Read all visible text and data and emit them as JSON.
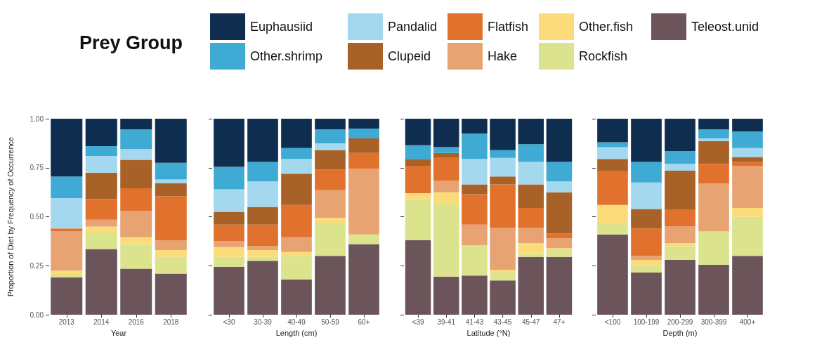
{
  "chart_data": [
    {
      "type": "bar",
      "stacked": true,
      "legend": "top",
      "legend_title": "Prey Group",
      "ylabel": "Proportion of Diet by Frequency of Occurrence",
      "xlabel": "Year",
      "categories": [
        "2013",
        "2014",
        "2016",
        "2018"
      ],
      "ylim": [
        0,
        1
      ],
      "yticks": [
        {
          "value": 0,
          "label": "0.00"
        },
        {
          "value": 0.25,
          "label": "0.25"
        },
        {
          "value": 0.5,
          "label": "0.50"
        },
        {
          "value": 0.75,
          "label": "0.75"
        },
        {
          "value": 1,
          "label": "1.00"
        }
      ],
      "series": [
        {
          "name": "Teleost.unid",
          "color": "#6c555a",
          "values": [
            0.19,
            0.335,
            0.235,
            0.21
          ]
        },
        {
          "name": "Rockfish",
          "color": "#dbe48c",
          "values": [
            0.015,
            0.085,
            0.125,
            0.085
          ]
        },
        {
          "name": "Other.fish",
          "color": "#fcdc7a",
          "values": [
            0.02,
            0.03,
            0.035,
            0.035
          ]
        },
        {
          "name": "Hake",
          "color": "#e8a373",
          "values": [
            0.2,
            0.035,
            0.135,
            0.05
          ]
        },
        {
          "name": "Flatfish",
          "color": "#e0722d",
          "values": [
            0.015,
            0.105,
            0.115,
            0.225
          ]
        },
        {
          "name": "Clupeid",
          "color": "#a86126",
          "values": [
            0,
            0.135,
            0.145,
            0.065
          ]
        },
        {
          "name": "Pandalid",
          "color": "#a4d8ee",
          "values": [
            0.155,
            0.085,
            0.055,
            0.02
          ]
        },
        {
          "name": "Other.shrimp",
          "color": "#3faad4",
          "values": [
            0.11,
            0.05,
            0.1,
            0.085
          ]
        },
        {
          "name": "Euphausiid",
          "color": "#0f2d4f",
          "values": [
            0.295,
            0.14,
            0.055,
            0.225
          ]
        }
      ]
    },
    {
      "type": "bar",
      "stacked": true,
      "tick_labels": "x",
      "xlabel": "Length (cm)",
      "categories": [
        "<30",
        "30-39",
        "40-49",
        "50-59",
        "60+"
      ],
      "ylim": [
        0,
        1
      ],
      "yticks": [
        0,
        0.25,
        0.5,
        0.75,
        1
      ],
      "series": [
        {
          "color": "#6c555a",
          "values": [
            0.245,
            0.275,
            0.18,
            0.3,
            0.36
          ]
        },
        {
          "color": "#dbe48c",
          "values": [
            0.05,
            0.02,
            0.12,
            0.17,
            0.05
          ]
        },
        {
          "color": "#fcdc7a",
          "values": [
            0.05,
            0.035,
            0.02,
            0.025,
            0
          ]
        },
        {
          "color": "#e8a373",
          "values": [
            0.03,
            0.02,
            0.075,
            0.14,
            0.335
          ]
        },
        {
          "color": "#e0722d",
          "values": [
            0.085,
            0.11,
            0.165,
            0.105,
            0.08
          ]
        },
        {
          "color": "#a86126",
          "values": [
            0.065,
            0.09,
            0.16,
            0.1,
            0.075
          ]
        },
        {
          "color": "#a4d8ee",
          "values": [
            0.115,
            0.13,
            0.075,
            0.035,
            0
          ]
        },
        {
          "color": "#3faad4",
          "values": [
            0.115,
            0.1,
            0.055,
            0.07,
            0.05
          ]
        },
        {
          "color": "#0f2d4f",
          "values": [
            0.245,
            0.22,
            0.15,
            0.055,
            0.05
          ]
        }
      ]
    },
    {
      "type": "bar",
      "stacked": true,
      "tick_labels": "x",
      "xlabel": "Latitude (°N)",
      "categories": [
        "<39",
        "39-41",
        "41-43",
        "43-45",
        "45-47",
        "47+"
      ],
      "ylim": [
        0,
        1
      ],
      "yticks": [
        0,
        0.25,
        0.5,
        0.75,
        1
      ],
      "series": [
        {
          "color": "#6c555a",
          "values": [
            0.38,
            0.195,
            0.2,
            0.175,
            0.295,
            0.295
          ]
        },
        {
          "color": "#dbe48c",
          "values": [
            0.205,
            0.375,
            0.155,
            0.04,
            0.02,
            0.035
          ]
        },
        {
          "color": "#fcdc7a",
          "values": [
            0.035,
            0.055,
            0,
            0.015,
            0.05,
            0.01
          ]
        },
        {
          "color": "#e8a373",
          "values": [
            0,
            0.06,
            0.105,
            0.215,
            0.08,
            0.05
          ]
        },
        {
          "color": "#e0722d",
          "values": [
            0.14,
            0.115,
            0.155,
            0.22,
            0.1,
            0.025
          ]
        },
        {
          "color": "#a86126",
          "values": [
            0.035,
            0.025,
            0.05,
            0.04,
            0.12,
            0.21
          ]
        },
        {
          "color": "#a4d8ee",
          "values": [
            0,
            0,
            0.13,
            0.095,
            0.115,
            0.055
          ]
        },
        {
          "color": "#3faad4",
          "values": [
            0.07,
            0.03,
            0.13,
            0.04,
            0.09,
            0.1
          ]
        },
        {
          "color": "#0f2d4f",
          "values": [
            0.135,
            0.145,
            0.075,
            0.16,
            0.13,
            0.22
          ]
        }
      ]
    },
    {
      "type": "bar",
      "stacked": true,
      "tick_labels": "x",
      "xlabel": "Depth (m)",
      "categories": [
        "<100",
        "100-199",
        "200-299",
        "300-399",
        "400+"
      ],
      "ylim": [
        0,
        1
      ],
      "yticks": [
        0,
        0.25,
        0.5,
        0.75,
        1
      ],
      "series": [
        {
          "color": "#6c555a",
          "values": [
            0.41,
            0.215,
            0.28,
            0.255,
            0.3
          ]
        },
        {
          "color": "#dbe48c",
          "values": [
            0.06,
            0.035,
            0.07,
            0.17,
            0.2
          ]
        },
        {
          "color": "#fcdc7a",
          "values": [
            0.09,
            0.03,
            0.015,
            0,
            0.045
          ]
        },
        {
          "color": "#e8a373",
          "values": [
            0,
            0.02,
            0.085,
            0.245,
            0.215
          ]
        },
        {
          "color": "#e0722d",
          "values": [
            0.175,
            0.14,
            0.085,
            0.1,
            0.02
          ]
        },
        {
          "color": "#a86126",
          "values": [
            0.06,
            0.1,
            0.2,
            0.115,
            0.025
          ]
        },
        {
          "color": "#a4d8ee",
          "values": [
            0.06,
            0.135,
            0.035,
            0.015,
            0.045
          ]
        },
        {
          "color": "#3faad4",
          "values": [
            0.025,
            0.105,
            0.065,
            0.045,
            0.085
          ]
        },
        {
          "color": "#0f2d4f",
          "values": [
            0.12,
            0.22,
            0.165,
            0.055,
            0.065
          ]
        }
      ]
    }
  ]
}
